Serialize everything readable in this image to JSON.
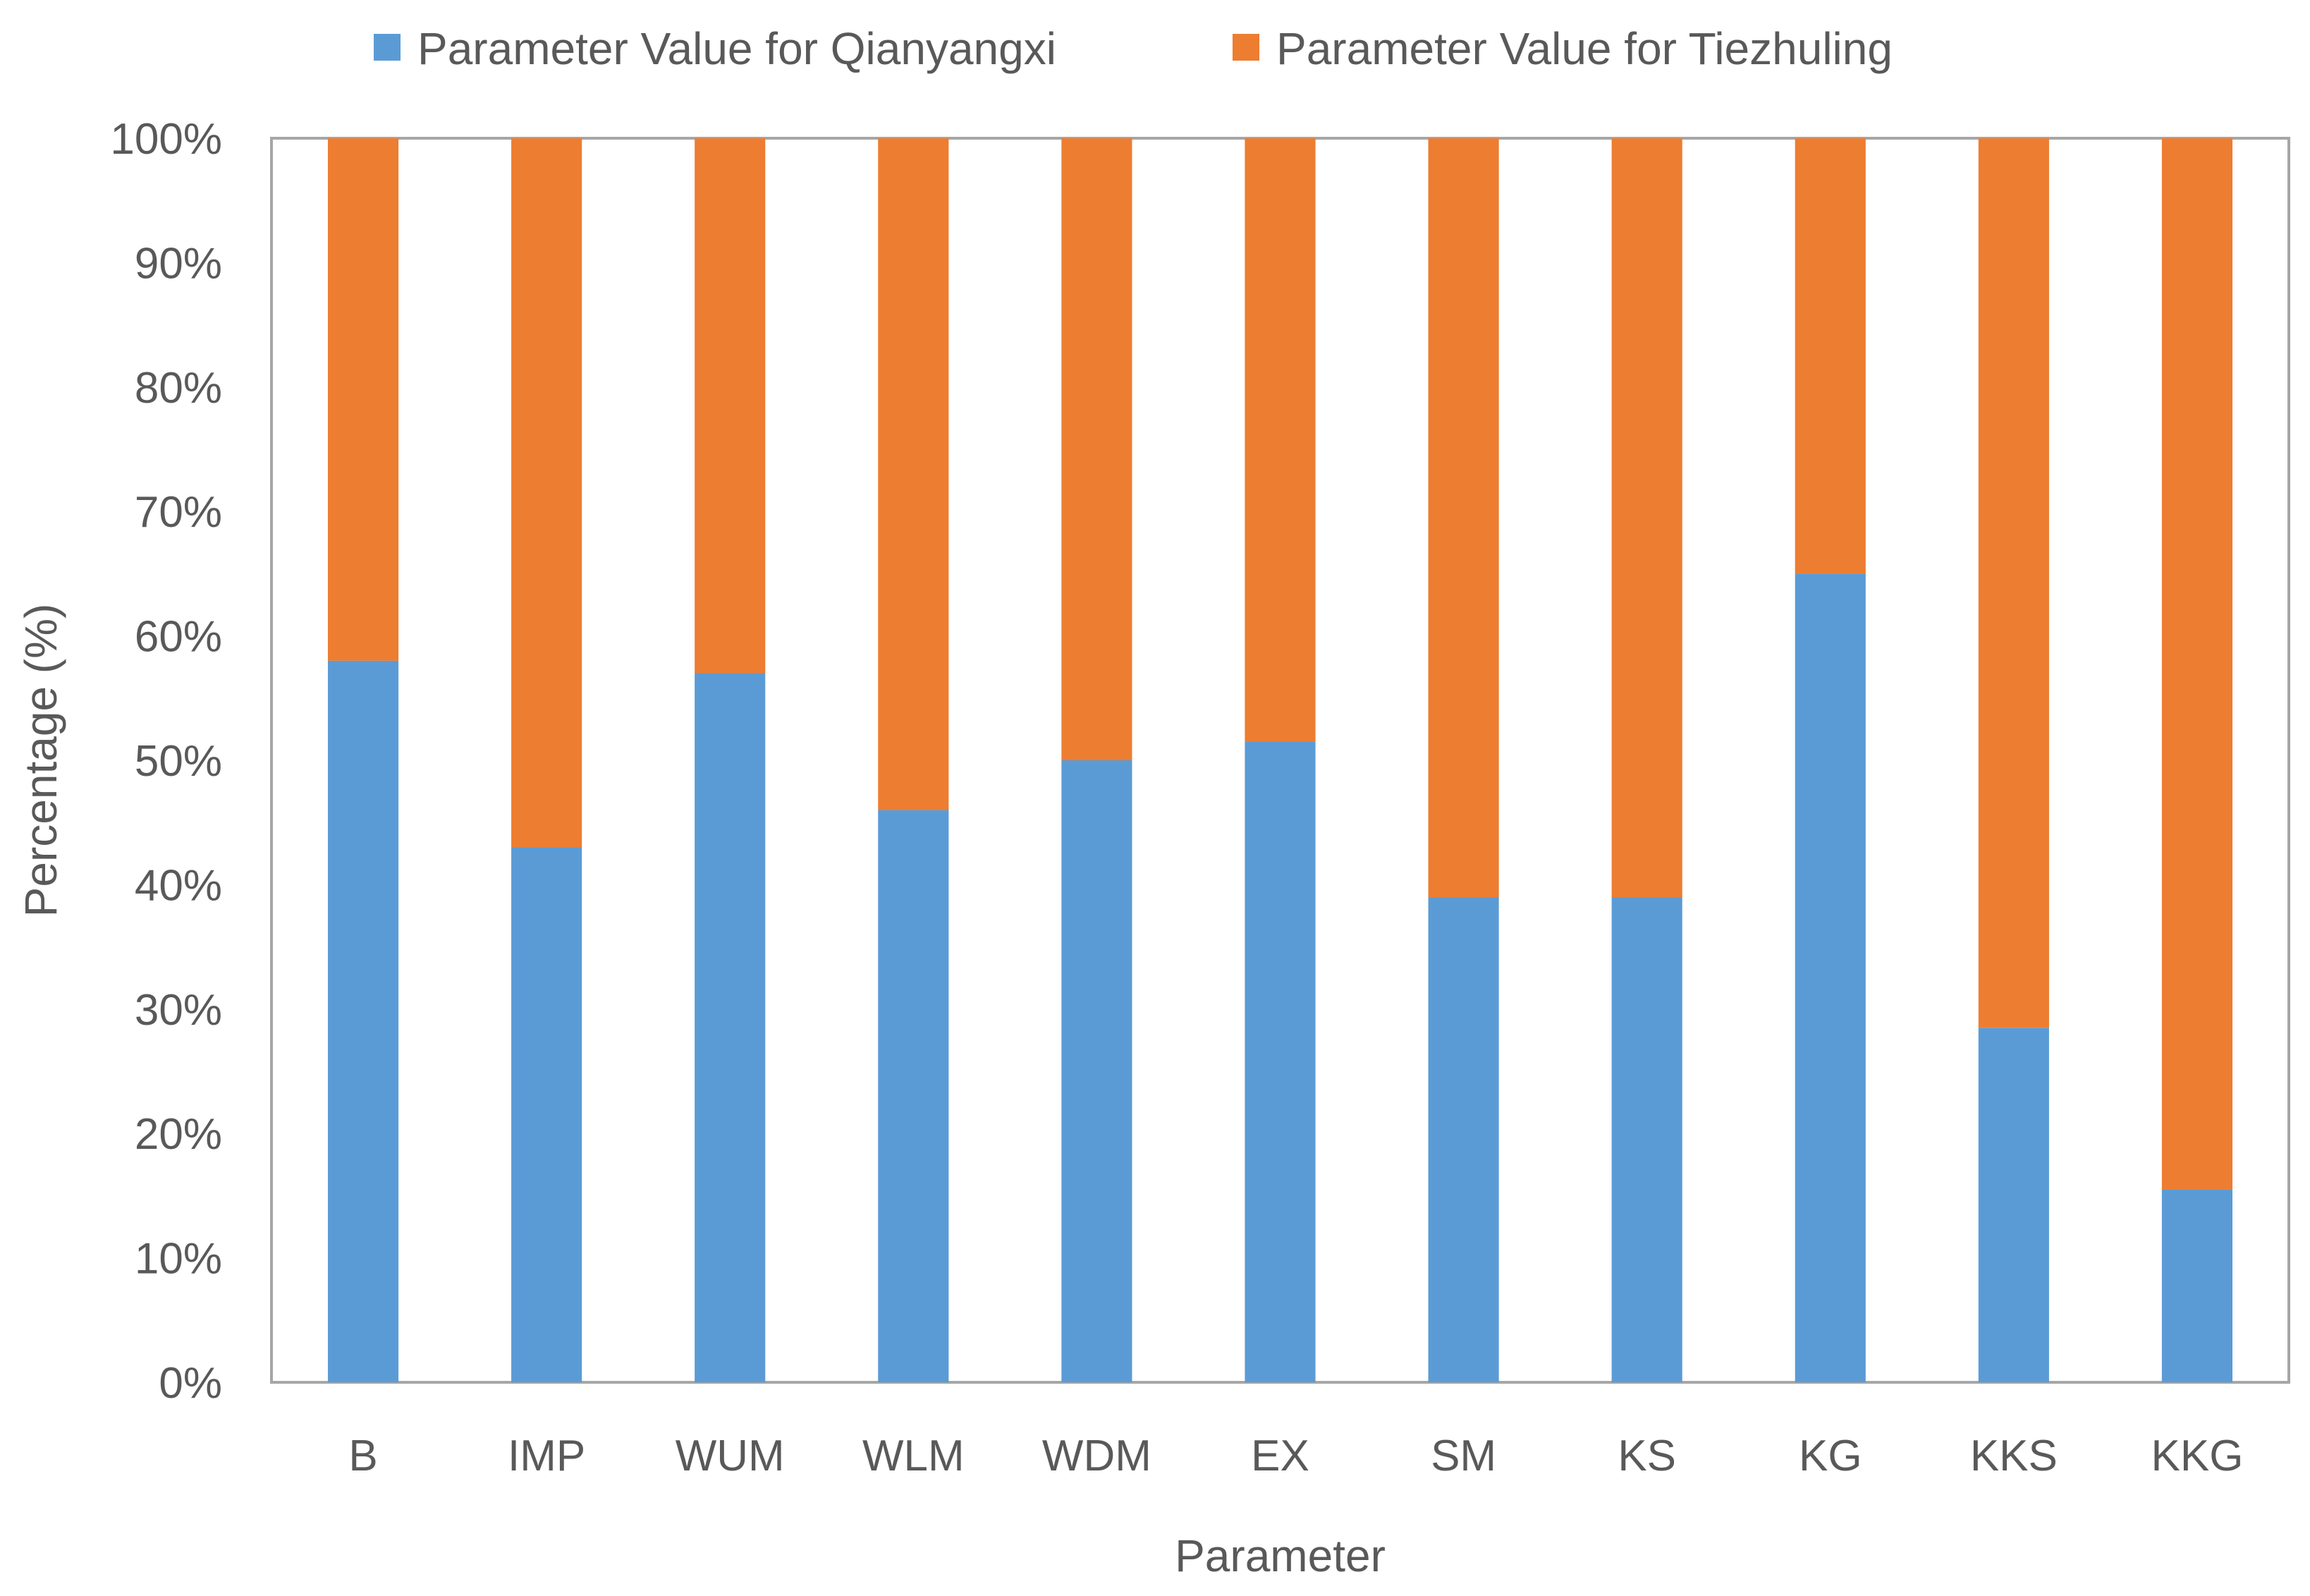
{
  "chart_data": {
    "type": "bar",
    "stacked": true,
    "normalized_percent": true,
    "title": "",
    "xlabel": "Parameter",
    "ylabel": "Percentage (%)",
    "ylim": [
      0,
      100
    ],
    "yticks": [
      0,
      10,
      20,
      30,
      40,
      50,
      60,
      70,
      80,
      90,
      100
    ],
    "ytick_suffix": "%",
    "grid": false,
    "legend_position": "top",
    "categories": [
      "B",
      "IMP",
      "WUM",
      "WLM",
      "WDM",
      "EX",
      "SM",
      "KS",
      "KG",
      "KKS",
      "KKG"
    ],
    "series": [
      {
        "name": "Parameter Value for Qianyangxi",
        "color": "#5B9BD5",
        "values": [
          58,
          43,
          57,
          46,
          50,
          51.5,
          39,
          39,
          65,
          28.5,
          15.5
        ]
      },
      {
        "name": "Parameter Value for Tiezhuling",
        "color": "#ED7D31",
        "values": [
          42,
          57,
          43,
          54,
          50,
          48.5,
          61,
          61,
          35,
          71.5,
          84.5
        ]
      }
    ],
    "axis_color": "#A6A6A6",
    "text_color": "#595959"
  }
}
